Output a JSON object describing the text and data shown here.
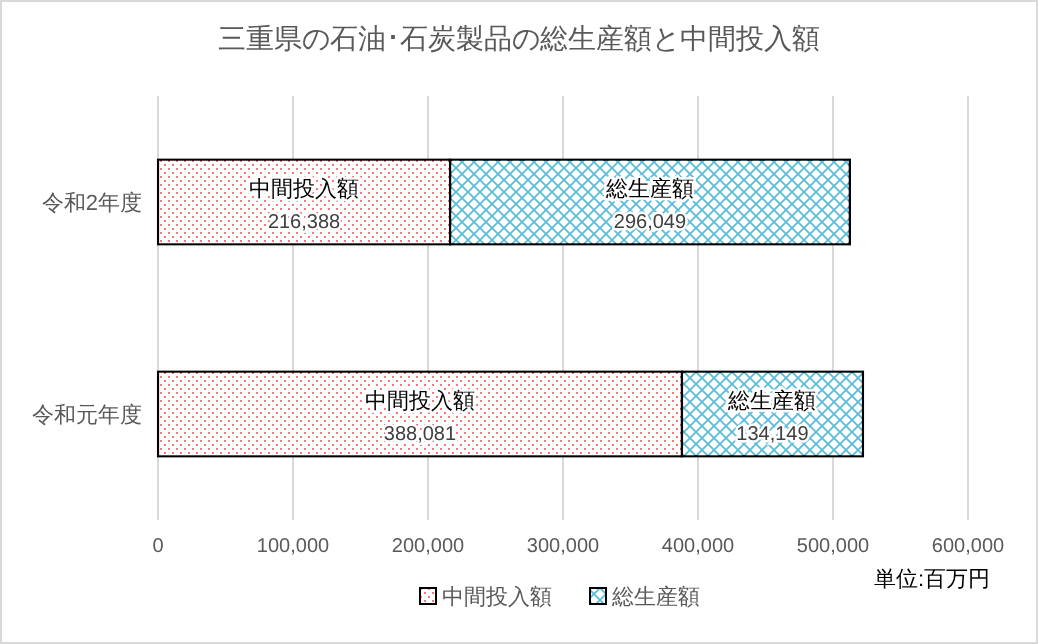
{
  "chart_data": {
    "type": "bar",
    "orientation": "horizontal",
    "stacked": true,
    "title": "三重県の石油･石炭製品の総生産額と中間投入額",
    "categories": [
      "令和2年度",
      "令和元年度"
    ],
    "series": [
      {
        "name": "中間投入額",
        "color": "#f4777a",
        "values": [
          216388,
          388081
        ],
        "value_labels": [
          "216,388",
          "388,081"
        ]
      },
      {
        "name": "総生産額",
        "color": "#5bbcd8",
        "values": [
          296049,
          134149
        ],
        "value_labels": [
          "296,049",
          "134,149"
        ]
      }
    ],
    "xlim": [
      0,
      600000
    ],
    "xticks": [
      0,
      {
        "value": 100000,
        "label": "100,000"
      },
      {
        "value": 200000,
        "label": "200,000"
      },
      {
        "value": 300000,
        "label": "300,000"
      },
      {
        "value": 400000,
        "label": "400,000"
      },
      {
        "value": 500000,
        "label": "500,000"
      },
      {
        "value": 600000,
        "label": "600,000"
      }
    ],
    "grid": "x",
    "legend": "bottom",
    "annotations": [
      "単位:百万円"
    ]
  }
}
